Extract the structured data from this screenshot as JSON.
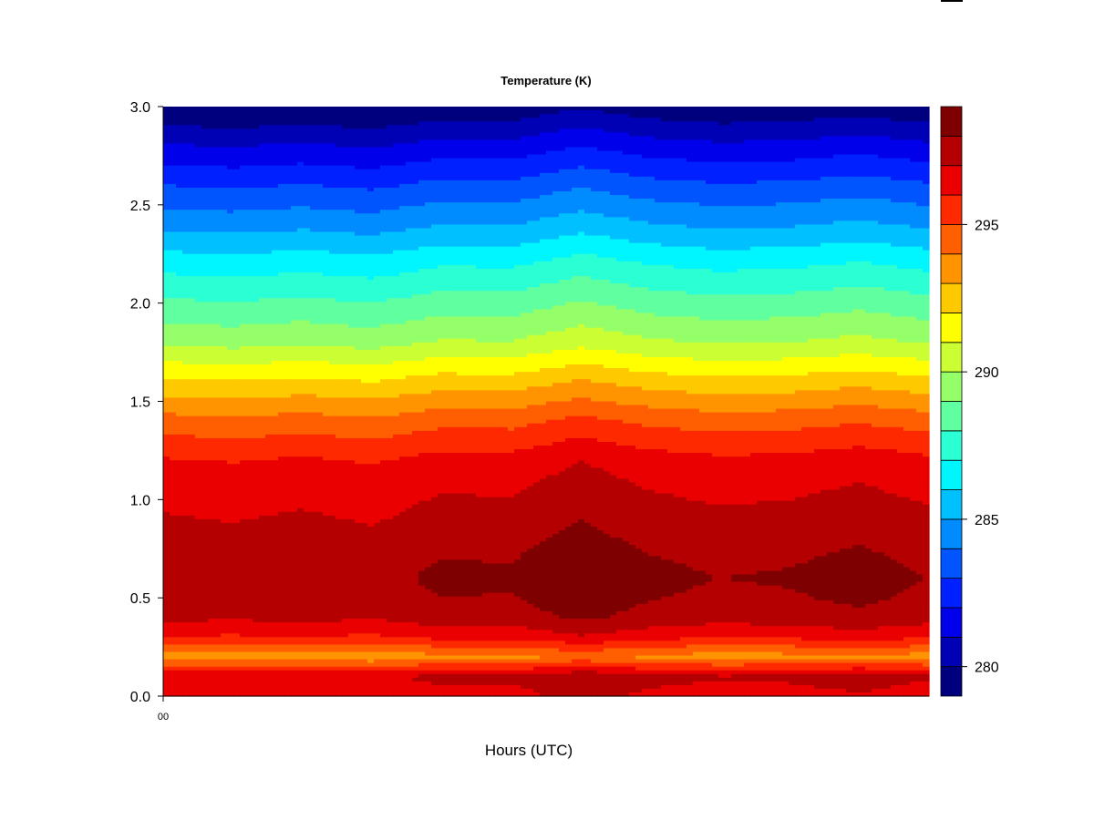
{
  "chart_data": {
    "type": "heatmap",
    "subtype": "filled-contour",
    "title": "Temperature (K)",
    "xlabel": "Hours (UTC)",
    "ylabel": "",
    "x_tick_labels": [
      "00"
    ],
    "y_ticks": [
      "0.0",
      "0.5",
      "1.0",
      "1.5",
      "2.0",
      "2.5",
      "3.0"
    ],
    "ylim": [
      0,
      3
    ],
    "x_columns": [
      0,
      1,
      2,
      3,
      4,
      5,
      6,
      7,
      8,
      9,
      10,
      11
    ],
    "level_min": 279,
    "level_max": 299,
    "level_step": 1,
    "colorbar": {
      "range": [
        279,
        299
      ],
      "tick_values": [
        280,
        285,
        290,
        295
      ],
      "tick_labels": [
        "280",
        "285",
        "290",
        "295"
      ],
      "colors": [
        "#00007F",
        "#0000B4",
        "#0000EA",
        "#0020FF",
        "#0055FF",
        "#008BFF",
        "#00C0FF",
        "#00F6FF",
        "#2BFFD4",
        "#60FF9F",
        "#95FF6A",
        "#CBFF34",
        "#FFFF00",
        "#FFC900",
        "#FF9400",
        "#FF5F00",
        "#FF2900",
        "#EA0000",
        "#B40000",
        "#7F0000"
      ]
    },
    "profile_height_km": [
      0.0,
      0.1,
      0.2,
      0.3,
      0.4,
      0.5,
      0.6,
      0.7,
      0.8,
      0.9,
      1.0,
      1.2,
      1.4,
      1.6,
      1.8,
      2.0,
      2.2,
      2.4,
      2.6,
      2.8,
      3.0
    ],
    "profile_temperature_k": [
      296.6,
      297.2,
      293.6,
      296.2,
      297.5,
      297.9,
      298.1,
      297.9,
      297.6,
      297.3,
      297.0,
      296.3,
      294.6,
      292.4,
      290.0,
      288.4,
      286.8,
      284.9,
      283.2,
      281.3,
      279.2
    ],
    "shift_k_by_column": [
      -0.2,
      -0.35,
      -0.15,
      -0.4,
      0.1,
      0.05,
      0.7,
      0.15,
      -0.1,
      0.0,
      0.3,
      -0.1
    ]
  }
}
